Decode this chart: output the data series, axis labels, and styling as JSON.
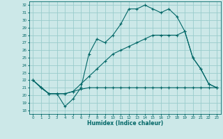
{
  "xlabel": "Humidex (Indice chaleur)",
  "ylabel": "",
  "bg_color": "#cce8e8",
  "grid_color": "#99cccc",
  "line_color": "#006666",
  "xlim": [
    -0.5,
    23.5
  ],
  "ylim": [
    17.5,
    32.5
  ],
  "xticks": [
    0,
    1,
    2,
    3,
    4,
    5,
    6,
    7,
    8,
    9,
    10,
    11,
    12,
    13,
    14,
    15,
    16,
    17,
    18,
    19,
    20,
    21,
    22,
    23
  ],
  "yticks": [
    18,
    19,
    20,
    21,
    22,
    23,
    24,
    25,
    26,
    27,
    28,
    29,
    30,
    31,
    32
  ],
  "series": [
    {
      "x": [
        0,
        1,
        2,
        3,
        4,
        5,
        6,
        7,
        8,
        9,
        10,
        11,
        12,
        13,
        14,
        15,
        16,
        17,
        18,
        19,
        20,
        21,
        22,
        23
      ],
      "y": [
        22,
        21,
        20.2,
        20.2,
        20.2,
        20.5,
        20.8,
        21,
        21,
        21,
        21,
        21,
        21,
        21,
        21,
        21,
        21,
        21,
        21,
        21,
        21,
        21,
        21,
        21
      ]
    },
    {
      "x": [
        0,
        1,
        2,
        3,
        4,
        5,
        6,
        7,
        8,
        9,
        10,
        11,
        12,
        13,
        14,
        15,
        16,
        17,
        18,
        19,
        20,
        21,
        22,
        23
      ],
      "y": [
        22,
        21,
        20.2,
        20.2,
        20.2,
        20.5,
        21.5,
        22.5,
        23.5,
        24.5,
        25.5,
        26,
        26.5,
        27,
        27.5,
        28,
        28,
        28,
        28,
        28.5,
        25,
        23.5,
        21.5,
        21
      ]
    },
    {
      "x": [
        0,
        2,
        3,
        4,
        5,
        6,
        7,
        8,
        9,
        10,
        11,
        12,
        13,
        14,
        15,
        16,
        17,
        18,
        19,
        20,
        21,
        22,
        23
      ],
      "y": [
        22,
        20.2,
        20.2,
        18.5,
        19.5,
        21,
        25.5,
        27.5,
        27,
        28,
        29.5,
        31.5,
        31.5,
        32,
        31.5,
        31,
        31.5,
        30.5,
        28.5,
        25,
        23.5,
        21.5,
        21
      ]
    }
  ]
}
